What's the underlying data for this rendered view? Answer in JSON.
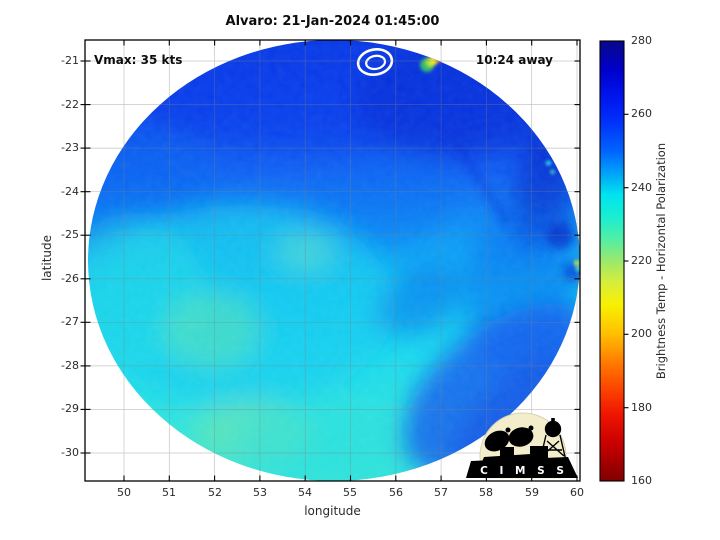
{
  "title": "Alvaro: 21-Jan-2024 01:45:00",
  "annotations": {
    "vmax": "Vmax: 35 kts",
    "time_away": "10:24 away"
  },
  "axes": {
    "x": {
      "label": "longitude",
      "ticks": [
        "50",
        "51",
        "52",
        "53",
        "54",
        "55",
        "56",
        "57",
        "58",
        "59",
        "60"
      ]
    },
    "y": {
      "label": "latitude",
      "ticks": [
        "-21",
        "-22",
        "-23",
        "-24",
        "-25",
        "-26",
        "-27",
        "-28",
        "-29",
        "-30"
      ]
    }
  },
  "colorbar": {
    "label": "Brightness Temp - Horizontal Polarization",
    "ticks": [
      "280",
      "260",
      "240",
      "220",
      "200",
      "180",
      "160"
    ]
  },
  "logo": {
    "org": "CIMSS",
    "text": "C I M S S"
  },
  "chart_data": {
    "type": "heatmap",
    "title": "Alvaro: 21-Jan-2024 01:45:00",
    "storm_name": "Alvaro",
    "datetime": "21-Jan-2024 01:45:00",
    "vmax_kts": 35,
    "observation_offset": "10:24 away",
    "xlabel": "longitude",
    "ylabel": "latitude",
    "xlim": [
      49.1,
      60.1
    ],
    "ylim": [
      -30.6,
      -20.5
    ],
    "x_ticks": [
      50,
      51,
      52,
      53,
      54,
      55,
      56,
      57,
      58,
      59,
      60
    ],
    "y_ticks": [
      -21,
      -22,
      -23,
      -24,
      -25,
      -26,
      -27,
      -28,
      -29,
      -30
    ],
    "grid": true,
    "colorbar": {
      "label": "Brightness Temp - Horizontal Polarization",
      "orientation": "vertical-right",
      "range": [
        160,
        280
      ],
      "ticks": [
        280,
        260,
        240,
        220,
        200,
        180,
        160
      ],
      "colormap": [
        {
          "value": 280,
          "color": "#08088a"
        },
        {
          "value": 272,
          "color": "#0000cd"
        },
        {
          "value": 264,
          "color": "#0018f0"
        },
        {
          "value": 258,
          "color": "#0030fa"
        },
        {
          "value": 250,
          "color": "#0064ff"
        },
        {
          "value": 244,
          "color": "#00a2f8"
        },
        {
          "value": 238,
          "color": "#00e4ee"
        },
        {
          "value": 232,
          "color": "#1aeed2"
        },
        {
          "value": 226,
          "color": "#52eea6"
        },
        {
          "value": 220,
          "color": "#9ce86c"
        },
        {
          "value": 214,
          "color": "#d8ee3a"
        },
        {
          "value": 208,
          "color": "#f8f000"
        },
        {
          "value": 200,
          "color": "#ffbe00"
        },
        {
          "value": 192,
          "color": "#ff7800"
        },
        {
          "value": 184,
          "color": "#fb3c00"
        },
        {
          "value": 178,
          "color": "#ee1400"
        },
        {
          "value": 170,
          "color": "#c80000"
        },
        {
          "value": 160,
          "color": "#800000"
        }
      ]
    },
    "swath": {
      "shape": "circular scan",
      "center_lon": 54.6,
      "center_lat": -25.55,
      "approx_radius_deg": 5.4
    },
    "regions": [
      {
        "area": "north half (lat -20.5 to -24)",
        "approx_bt_K": 264,
        "appearance": "blue"
      },
      {
        "area": "northeast swath edge (lon 57-60, lat -22 to -25.5)",
        "approx_bt_K": 275,
        "appearance": "dark navy patches"
      },
      {
        "area": "center and southwest (lon 50-55, lat -25 to -30)",
        "approx_bt_K": 243,
        "appearance": "cyan"
      },
      {
        "area": "southwest mottling (lon 52-54.5, lat -25 to -30)",
        "approx_bt_K": 231,
        "appearance": "green-cyan patches"
      },
      {
        "area": "southeast band along edge (lon 55-58.5, lat -27.5 to -30.5)",
        "approx_bt_K": 259,
        "appearance": "medium blue band"
      },
      {
        "area": "storm center (lon 55.5, lat -21.05)",
        "appearance": "white double contour ring"
      },
      {
        "area": "swath-edge artifact (lon 56.9, lat -21.05)",
        "approx_bt_K": 190,
        "appearance": "red-orange-yellow-green speckle"
      },
      {
        "area": "east edge speckles (lon 60, lat -25.6)",
        "approx_bt_K": 218,
        "appearance": "yellow-green dots"
      }
    ]
  }
}
